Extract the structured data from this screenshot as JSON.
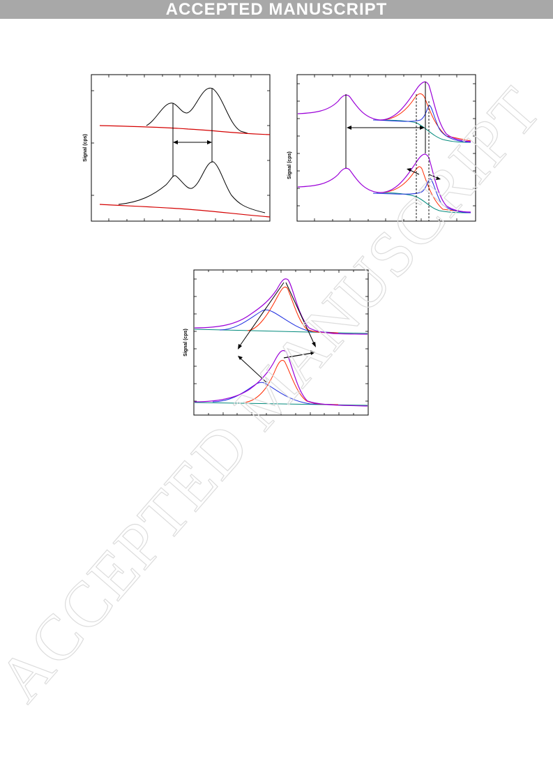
{
  "header": {
    "banner_text": "ACCEPTED MANUSCRIPT"
  },
  "watermark": {
    "text": "ACCEPTED MANUSCRIPT",
    "color": "#e2e2e2"
  },
  "colors": {
    "raw_spectrum": "#000000",
    "background": "#d40000",
    "envelope": "#9b00d8",
    "component_red": "#ff2a00",
    "component_blue": "#1f2fe0",
    "baseline_teal": "#00897b"
  },
  "chart_data": [
    {
      "type": "line",
      "panel": "top-left",
      "ylabel": "Signal (cps)",
      "annotations": [
        "double-headed horizontal arrow between two peak positions"
      ]
    },
    {
      "type": "line",
      "panel": "top-right",
      "ylabel": "Signal (cps)",
      "annotations": [
        "double-headed horizontal arrow between peaks",
        "dashed vertical guide lines",
        "diverging arrows on component peaks"
      ]
    },
    {
      "type": "line",
      "panel": "bottom-center",
      "ylabel": "Signal (cps)",
      "annotations": [
        "arrows from component peaks of upper to lower spectrum"
      ]
    }
  ]
}
